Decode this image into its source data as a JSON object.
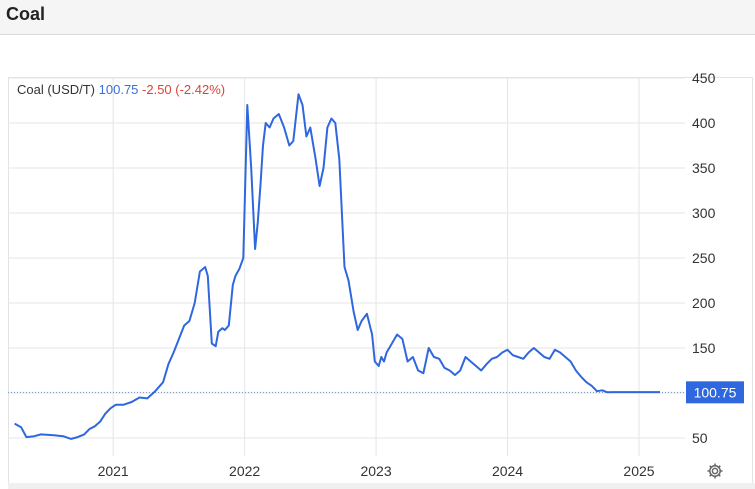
{
  "page": {
    "title": "Coal"
  },
  "legend": {
    "label": "Coal (USD/T)",
    "value": "100.75",
    "change": "-2.50 (-2.42%)"
  },
  "last_price_label": "100.75",
  "colors": {
    "line": "#2f67df",
    "change_negative": "#d9443a",
    "value": "#3b6fd8",
    "price_tag": "#2f67df",
    "grid": "#e6e6e6"
  },
  "icons": {
    "settings": "gear-icon"
  },
  "chart_data": {
    "type": "line",
    "title": "Coal (USD/T)",
    "x_domain": [
      2020.2,
      2025.35
    ],
    "ylim": [
      30,
      450
    ],
    "y_ticks": [
      50,
      100,
      150,
      200,
      250,
      300,
      350,
      400,
      450
    ],
    "y_tick_labels": [
      "50",
      "",
      "150",
      "200",
      "250",
      "300",
      "350",
      "400",
      "450"
    ],
    "x_ticks": [
      2021,
      2022,
      2023,
      2024,
      2025
    ],
    "x_tick_labels": [
      "2021",
      "2022",
      "2023",
      "2024",
      "2025"
    ],
    "grid": true,
    "last_value": 100.75,
    "series": [
      {
        "name": "Coal",
        "x": [
          2020.25,
          2020.3,
          2020.34,
          2020.4,
          2020.45,
          2020.55,
          2020.62,
          2020.68,
          2020.73,
          2020.78,
          2020.82,
          2020.86,
          2020.9,
          2020.94,
          2020.98,
          2021.02,
          2021.08,
          2021.14,
          2021.2,
          2021.26,
          2021.32,
          2021.38,
          2021.42,
          2021.46,
          2021.5,
          2021.54,
          2021.58,
          2021.62,
          2021.66,
          2021.7,
          2021.72,
          2021.75,
          2021.78,
          2021.8,
          2021.83,
          2021.85,
          2021.88,
          2021.91,
          2021.93,
          2021.96,
          2021.99,
          2022.02,
          2022.05,
          2022.08,
          2022.1,
          2022.12,
          2022.14,
          2022.16,
          2022.19,
          2022.22,
          2022.26,
          2022.3,
          2022.34,
          2022.37,
          2022.41,
          2022.44,
          2022.47,
          2022.5,
          2022.54,
          2022.57,
          2022.6,
          2022.63,
          2022.66,
          2022.69,
          2022.72,
          2022.76,
          2022.79,
          2022.83,
          2022.86,
          2022.89,
          2022.93,
          2022.97,
          2022.99,
          2023.02,
          2023.04,
          2023.06,
          2023.08,
          2023.12,
          2023.16,
          2023.2,
          2023.24,
          2023.28,
          2023.32,
          2023.36,
          2023.4,
          2023.44,
          2023.48,
          2023.52,
          2023.56,
          2023.6,
          2023.64,
          2023.68,
          2023.72,
          2023.76,
          2023.8,
          2023.84,
          2023.88,
          2023.92,
          2023.96,
          2024.0,
          2024.04,
          2024.08,
          2024.12,
          2024.16,
          2024.2,
          2024.24,
          2024.28,
          2024.32,
          2024.36,
          2024.4,
          2024.44,
          2024.48,
          2024.52,
          2024.56,
          2024.6,
          2024.64,
          2024.68,
          2024.72,
          2024.76,
          2024.8,
          2024.84,
          2024.88,
          2024.92,
          2024.96,
          2025.0,
          2025.04,
          2025.08,
          2025.12,
          2025.16
        ],
        "y": [
          66,
          62,
          51,
          52,
          54,
          53,
          52,
          49,
          51,
          54,
          60,
          63,
          68,
          77,
          83,
          87,
          87,
          90,
          95,
          94,
          102,
          112,
          132,
          145,
          160,
          175,
          180,
          200,
          235,
          240,
          230,
          155,
          152,
          168,
          172,
          170,
          175,
          220,
          230,
          238,
          250,
          420,
          350,
          260,
          290,
          330,
          375,
          400,
          395,
          405,
          410,
          395,
          375,
          380,
          432,
          420,
          385,
          395,
          360,
          330,
          350,
          395,
          405,
          400,
          360,
          240,
          225,
          190,
          170,
          180,
          188,
          165,
          135,
          130,
          140,
          135,
          145,
          155,
          165,
          160,
          135,
          140,
          125,
          122,
          150,
          140,
          138,
          128,
          125,
          120,
          125,
          140,
          135,
          130,
          125,
          132,
          138,
          140,
          145,
          148,
          142,
          140,
          138,
          145,
          150,
          145,
          140,
          138,
          148,
          145,
          140,
          135,
          125,
          118,
          112,
          108,
          102,
          103,
          100.75,
          101,
          101,
          101,
          101,
          101,
          101,
          101,
          101,
          101,
          101
        ]
      }
    ]
  }
}
